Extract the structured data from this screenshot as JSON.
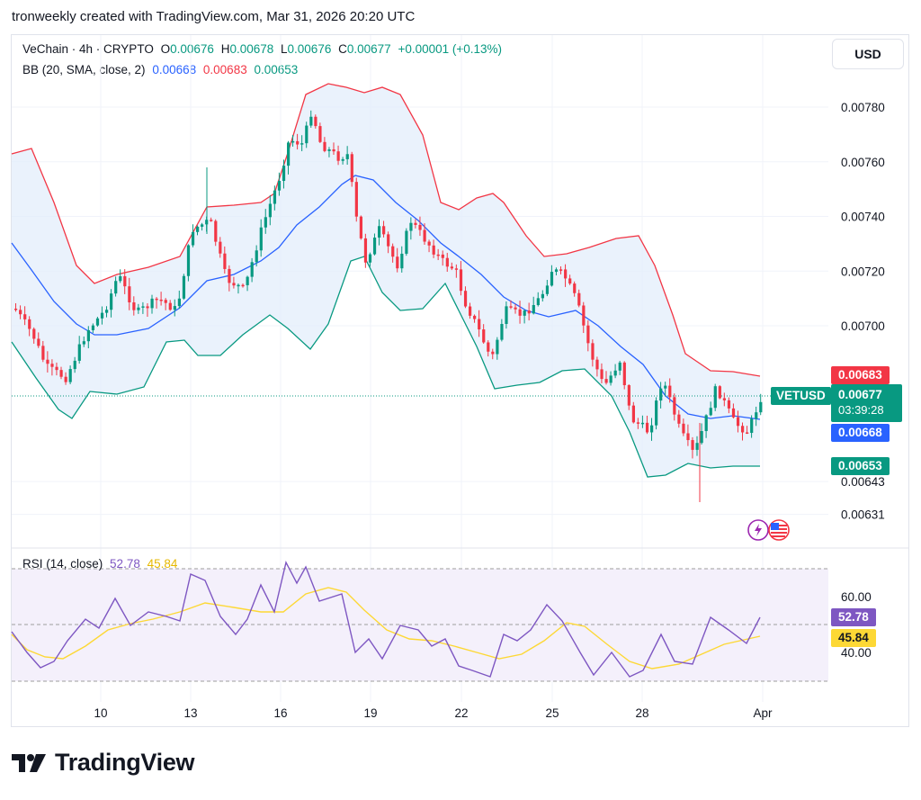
{
  "header": {
    "text": "tronweekly created with TradingView.com, Mar 31, 2026 20:20 UTC"
  },
  "legend": {
    "symbol": "VeChain · 4h · CRYPTO",
    "ohlc": [
      {
        "k": "O",
        "v": "0.00676"
      },
      {
        "k": "H",
        "v": "0.00678"
      },
      {
        "k": "L",
        "v": "0.00676"
      },
      {
        "k": "C",
        "v": "0.00677"
      }
    ],
    "change": "+0.00001 (+0.13%)",
    "bb_label": "BB (20, SMA, close, 2)",
    "bb_basis": "0.00668",
    "bb_upper": "0.00683",
    "bb_lower": "0.00653",
    "rsi_label": "RSI (14, close)",
    "rsi_value": "52.78",
    "rsi_ma": "45.84"
  },
  "currency_button": "USD",
  "price_tags": {
    "upper": "0.00683",
    "symbol": "VETUSD",
    "last": "0.00677",
    "countdown": "03:39:28",
    "basis": "0.00668",
    "lower": "0.00653",
    "rsi": "52.78",
    "rsi_ma": "45.84"
  },
  "colors": {
    "up": "#089981",
    "down": "#f23645",
    "basis": "#2962ff",
    "upper": "#f23645",
    "lower": "#089981",
    "band_fill": "#e8f2fc",
    "rsi_line": "#7e57c2",
    "rsi_ma": "#fdd835",
    "rsi_band": "#ede7f6"
  },
  "footer": {
    "brand": "TradingView"
  },
  "chart_data": [
    {
      "type": "candlestick",
      "title": "VeChain · 4h · CRYPTO",
      "ylim": [
        0.00625,
        0.00795
      ],
      "y_ticks": [
        "0.00780",
        "0.00760",
        "0.00740",
        "0.00720",
        "0.00700",
        "0.00643",
        "0.00631"
      ],
      "x_ticks": [
        "10",
        "13",
        "16",
        "19",
        "22",
        "25",
        "28",
        "Apr"
      ],
      "approx_close_path": [
        [
          "Mar 7",
          0.00706
        ],
        [
          "Mar 8",
          0.0069
        ],
        [
          "Mar 9",
          0.00685
        ],
        [
          "Mar 10",
          0.00703
        ],
        [
          "Mar 11",
          0.00712
        ],
        [
          "Mar 12",
          0.00705
        ],
        [
          "Mar 13",
          0.00735
        ],
        [
          "Mar 14",
          0.0072
        ],
        [
          "Mar 15",
          0.00725
        ],
        [
          "Mar 16",
          0.0077
        ],
        [
          "Mar 17",
          0.0076
        ],
        [
          "Mar 18",
          0.00758
        ],
        [
          "Mar 19",
          0.0072
        ],
        [
          "Mar 20",
          0.00738
        ],
        [
          "Mar 21",
          0.00725
        ],
        [
          "Mar 22",
          0.007
        ],
        [
          "Mar 23",
          0.00685
        ],
        [
          "Mar 24",
          0.00705
        ],
        [
          "Mar 25",
          0.00718
        ],
        [
          "Mar 26",
          0.0069
        ],
        [
          "Mar 27",
          0.00665
        ],
        [
          "Mar 28",
          0.00675
        ],
        [
          "Mar 29",
          0.0066
        ],
        [
          "Mar 30",
          0.0068
        ],
        [
          "Mar 31",
          0.00677
        ]
      ],
      "series": [
        {
          "name": "BB Basis",
          "last": 0.00668
        },
        {
          "name": "BB Upper",
          "last": 0.00683
        },
        {
          "name": "BB Lower",
          "last": 0.00653
        }
      ]
    },
    {
      "type": "line",
      "title": "RSI (14, close)",
      "ylim": [
        20,
        80
      ],
      "y_ticks": [
        "60.00",
        "40.00"
      ],
      "band": [
        30,
        70
      ],
      "series": [
        {
          "name": "RSI",
          "last": 52.78
        },
        {
          "name": "RSI MA",
          "last": 45.84
        }
      ]
    }
  ]
}
